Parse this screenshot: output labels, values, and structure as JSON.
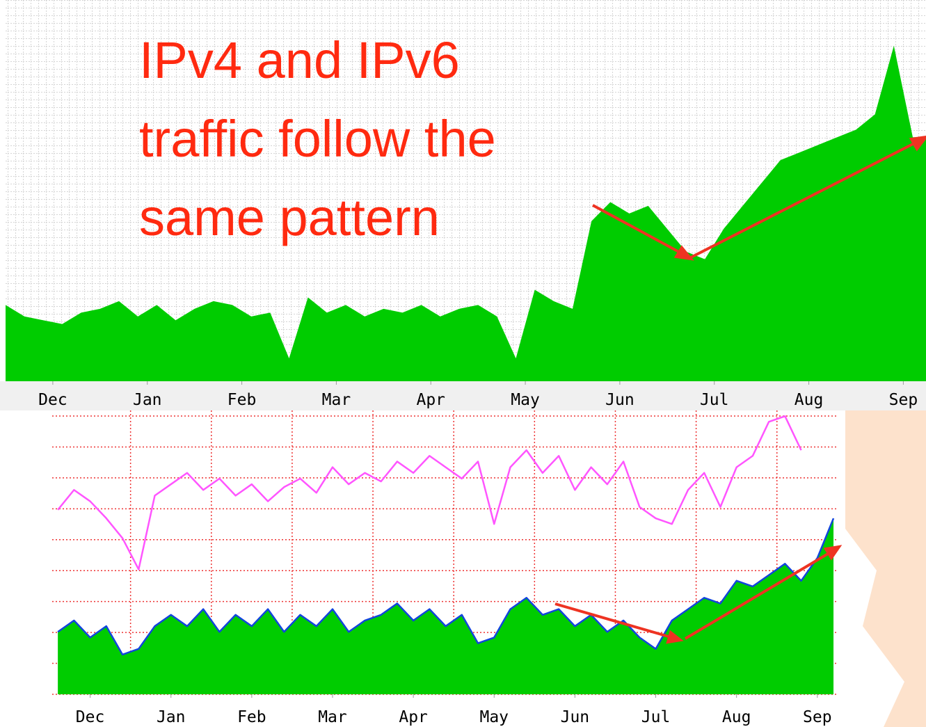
{
  "annotation": {
    "lines": [
      "IPv4 and IPv6",
      "traffic follow the",
      "same pattern"
    ]
  },
  "chart_data": [
    {
      "type": "area",
      "color": "#00cc00",
      "x": [
        -0.5,
        -0.3,
        -0.1,
        0.1,
        0.3,
        0.5,
        0.7,
        0.9,
        1.1,
        1.3,
        1.5,
        1.7,
        1.9,
        2.1,
        2.3,
        2.5,
        2.7,
        2.9,
        3.1,
        3.3,
        3.5,
        3.7,
        3.9,
        4.1,
        4.3,
        4.5,
        4.7,
        4.9,
        5.1,
        5.3,
        5.5,
        5.7,
        5.9,
        6.1,
        6.3,
        6.5,
        6.7,
        6.9,
        7.1,
        7.3,
        7.5,
        7.7,
        7.9,
        8.1,
        8.3,
        8.5,
        8.7,
        8.9,
        9.1
      ],
      "values": [
        20,
        17,
        16,
        15,
        18,
        19,
        21,
        17,
        20,
        16,
        19,
        21,
        20,
        17,
        18,
        6,
        22,
        18,
        20,
        17,
        19,
        18,
        20,
        17,
        19,
        20,
        17,
        6,
        24,
        21,
        19,
        42,
        47,
        44,
        46,
        40,
        34,
        32,
        40,
        46,
        52,
        58,
        60,
        62,
        64,
        66,
        70,
        88,
        64
      ],
      "xlim": [
        -0.5,
        9.24
      ],
      "ylim": [
        0,
        100
      ],
      "xticks": [
        {
          "value": 0,
          "label": "Dec"
        },
        {
          "value": 1,
          "label": "Jan"
        },
        {
          "value": 2,
          "label": "Feb"
        },
        {
          "value": 3,
          "label": "Mar"
        },
        {
          "value": 4,
          "label": "Apr"
        },
        {
          "value": 5,
          "label": "May"
        },
        {
          "value": 6,
          "label": "Jun"
        },
        {
          "value": 7,
          "label": "Jul"
        },
        {
          "value": 8,
          "label": "Aug"
        },
        {
          "value": 9,
          "label": "Sep"
        }
      ]
    },
    {
      "type": "line",
      "x": [
        -0.4,
        -0.2,
        0,
        0.2,
        0.4,
        0.6,
        0.8,
        1.0,
        1.2,
        1.4,
        1.6,
        1.8,
        2.0,
        2.2,
        2.4,
        2.6,
        2.8,
        3.0,
        3.2,
        3.4,
        3.6,
        3.8,
        4.0,
        4.2,
        4.4,
        4.6,
        4.8,
        5.0,
        5.2,
        5.4,
        5.6,
        5.8,
        6.0,
        6.2,
        6.4,
        6.6,
        6.8,
        7.0,
        7.2,
        7.4,
        7.6,
        7.8,
        8.0,
        8.2,
        8.4,
        8.6,
        8.8,
        9.0,
        9.2
      ],
      "series": [
        {
          "color": "#ff55ff",
          "values": [
            65,
            72,
            68,
            62,
            55,
            44,
            70,
            74,
            78,
            72,
            76,
            70,
            74,
            68,
            73,
            76,
            71,
            80,
            74,
            78,
            75,
            82,
            78,
            84,
            80,
            76,
            82,
            60,
            80,
            86,
            78,
            84,
            72,
            80,
            74,
            82,
            66,
            62,
            60,
            72,
            78,
            66,
            80,
            84,
            96,
            98,
            86,
            null,
            null
          ]
        },
        {
          "color": "#1144dd",
          "fill": "#00cc00",
          "values": [
            22,
            26,
            20,
            24,
            14,
            16,
            24,
            28,
            24,
            30,
            22,
            28,
            24,
            30,
            22,
            28,
            24,
            30,
            22,
            26,
            28,
            32,
            26,
            30,
            24,
            28,
            18,
            20,
            30,
            34,
            28,
            30,
            24,
            28,
            22,
            26,
            20,
            16,
            26,
            30,
            34,
            32,
            40,
            38,
            42,
            46,
            40,
            48,
            62
          ]
        }
      ],
      "xlim": [
        -0.47,
        9.26
      ],
      "ylim": [
        0,
        100
      ],
      "xticks": [
        {
          "value": 0,
          "label": "Dec"
        },
        {
          "value": 1,
          "label": "Jan"
        },
        {
          "value": 2,
          "label": "Feb"
        },
        {
          "value": 3,
          "label": "Mar"
        },
        {
          "value": 4,
          "label": "Apr"
        },
        {
          "value": 5,
          "label": "May"
        },
        {
          "value": 6,
          "label": "Jun"
        },
        {
          "value": 7,
          "label": "Jul"
        },
        {
          "value": 8,
          "label": "Aug"
        },
        {
          "value": 9,
          "label": "Sep"
        }
      ]
    }
  ]
}
